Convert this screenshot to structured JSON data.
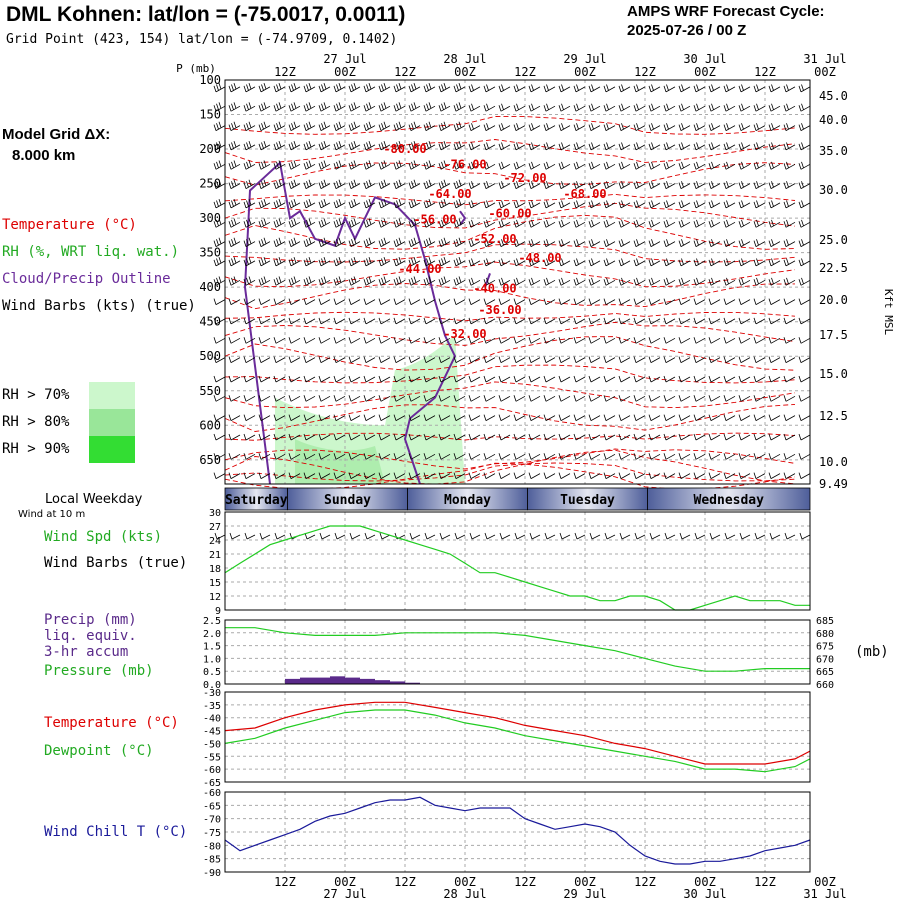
{
  "header": {
    "title": "DML Kohnen:  lat/lon = (-75.0017, 0.0011)",
    "subtitle": "Grid Point (423, 154) lat/lon = (-74.9709, 0.1402)",
    "cycle_line1": "AMPS WRF Forecast Cycle:",
    "cycle_line2": "2025-07-26 / 00  Z"
  },
  "legend": {
    "model_grid_label": "Model Grid ΔX:",
    "model_grid_value": "8.000 km",
    "temperature": "Temperature (°C)",
    "rh": "RH (%, WRT liq. wat.)",
    "cloud": "Cloud/Precip Outline",
    "wind_barbs": "Wind Barbs (kts) (true)",
    "rh70": "RH > 70%",
    "rh80": "RH > 80%",
    "rh90": "RH > 90%",
    "local_weekday": "Local Weekday",
    "wind_at_10m": "Wind at 10 m",
    "wind_spd": "Wind Spd (kts)",
    "wind_barbs_true": "Wind Barbs (true)",
    "precip": "Precip (mm)",
    "liq_equiv": "liq. equiv.",
    "accum": "3-hr accum",
    "pressure": "Pressure (mb)",
    "pressure_unit": "(mb)",
    "temp2": "Temperature (°C)",
    "dewpoint": "Dewpoint (°C)",
    "windchill": "Wind Chill T (°C)"
  },
  "colors": {
    "temperature": "#dd0000",
    "rh70": "#ccf7cc",
    "rh80": "#99e699",
    "rh90": "#33dd33",
    "cloud": "#6a2b9a",
    "green": "#22cc22",
    "precip": "#5a2a8a",
    "windchill": "#1a1a9a",
    "day_band": "#4e5e9a"
  },
  "chart_data": {
    "time_axis": {
      "hour_labels": [
        "12Z",
        "00Z",
        "12Z",
        "00Z",
        "12Z",
        "00Z",
        "12Z",
        "00Z",
        "12Z",
        "00Z"
      ],
      "date_labels": [
        "27 Jul",
        "28 Jul",
        "29 Jul",
        "30 Jul",
        "31 Jul"
      ],
      "hours": [
        12,
        24,
        36,
        48,
        60,
        72,
        84,
        96,
        108,
        120
      ]
    },
    "weekdays": [
      "Saturday",
      "Sunday",
      "Monday",
      "Tuesday",
      "Wednesday"
    ],
    "profile": {
      "p_label": "P (mb)",
      "p_ticks": [
        100,
        150,
        200,
        250,
        300,
        350,
        400,
        450,
        500,
        550,
        600,
        650
      ],
      "height_unit": "Kft MSL",
      "height_ticks": [
        "45.0",
        "40.0",
        "35.0",
        "30.0",
        "25.0",
        "22.5",
        "20.0",
        "17.5",
        "15.0",
        "12.5",
        "10.0",
        "9.49"
      ],
      "temperature_labels": [
        {
          "text": "-80.00",
          "t": 36,
          "p": 200
        },
        {
          "text": "-76.00",
          "t": 48,
          "p": 222
        },
        {
          "text": "-72.00",
          "t": 60,
          "p": 242
        },
        {
          "text": "-68.00",
          "t": 72,
          "p": 265
        },
        {
          "text": "-64.00",
          "t": 45,
          "p": 265
        },
        {
          "text": "-60.00",
          "t": 57,
          "p": 293
        },
        {
          "text": "-56.00",
          "t": 42,
          "p": 302
        },
        {
          "text": "-52.00",
          "t": 54,
          "p": 330
        },
        {
          "text": "-48.00",
          "t": 63,
          "p": 358
        },
        {
          "text": "-44.00",
          "t": 39,
          "p": 374
        },
        {
          "text": "-40.00",
          "t": 54,
          "p": 402
        },
        {
          "text": "-36.00",
          "t": 55,
          "p": 433
        },
        {
          "text": "-32.00",
          "t": 48,
          "p": 468
        }
      ]
    },
    "wind_speed": {
      "type": "line",
      "ylim": [
        9,
        30
      ],
      "yticks": [
        9,
        12,
        15,
        18,
        21,
        24,
        27,
        30
      ],
      "x": [
        0,
        3,
        6,
        9,
        12,
        15,
        18,
        21,
        24,
        27,
        30,
        33,
        36,
        39,
        42,
        45,
        48,
        51,
        54,
        57,
        60,
        63,
        66,
        69,
        72,
        75,
        78,
        81,
        84,
        87,
        90,
        93,
        96,
        99,
        102,
        105,
        108,
        111,
        114,
        117
      ],
      "values": [
        17,
        19,
        21,
        23,
        24,
        25,
        26,
        27,
        27,
        27,
        26,
        25,
        24,
        23,
        22,
        21,
        19,
        17,
        17,
        16,
        15,
        14,
        13,
        12,
        12,
        11,
        11,
        12,
        12,
        11,
        9,
        9,
        10,
        11,
        12,
        11,
        11,
        11,
        10,
        10
      ]
    },
    "precip_pressure": {
      "precip_ylim": [
        0,
        2.5
      ],
      "precip_yticks": [
        "0.0",
        "0.5",
        "1.0",
        "1.5",
        "2.0",
        "2.5"
      ],
      "pressure_ylim": [
        660,
        685
      ],
      "pressure_yticks": [
        "660",
        "665",
        "670",
        "675",
        "680",
        "685"
      ],
      "precip_x": [
        12,
        15,
        18,
        21,
        24,
        27,
        30,
        33,
        36
      ],
      "precip": [
        0.2,
        0.25,
        0.25,
        0.3,
        0.25,
        0.2,
        0.15,
        0.1,
        0.05
      ],
      "pressure_x": [
        0,
        6,
        12,
        18,
        24,
        30,
        36,
        42,
        48,
        54,
        60,
        66,
        72,
        78,
        84,
        90,
        96,
        102,
        108,
        114,
        117
      ],
      "pressure": [
        682,
        682,
        680,
        679,
        679,
        679,
        680,
        680,
        680,
        680,
        679,
        677,
        675,
        673,
        670,
        667,
        665,
        665,
        666,
        666,
        666
      ]
    },
    "temperature": {
      "ylim": [
        -65,
        -30
      ],
      "yticks": [
        -65,
        -60,
        -55,
        -50,
        -45,
        -40,
        -35,
        -30
      ],
      "x": [
        0,
        6,
        12,
        18,
        24,
        30,
        36,
        42,
        48,
        54,
        60,
        66,
        72,
        78,
        84,
        90,
        96,
        102,
        108,
        114,
        117
      ],
      "temperature": [
        -45,
        -44,
        -40,
        -37,
        -35,
        -34,
        -34,
        -36,
        -38,
        -40,
        -43,
        -45,
        -47,
        -50,
        -52,
        -55,
        -58,
        -58,
        -58,
        -56,
        -53
      ],
      "dewpoint": [
        -50,
        -48,
        -44,
        -41,
        -38,
        -37,
        -37,
        -39,
        -42,
        -44,
        -47,
        -49,
        -51,
        -53,
        -55,
        -57,
        -60,
        -60,
        -61,
        -59,
        -56
      ]
    },
    "wind_chill": {
      "ylim": [
        -90,
        -60
      ],
      "yticks": [
        -90,
        -85,
        -80,
        -75,
        -70,
        -65,
        -60
      ],
      "x": [
        0,
        3,
        6,
        9,
        12,
        15,
        18,
        21,
        24,
        27,
        30,
        33,
        36,
        39,
        42,
        45,
        48,
        51,
        54,
        57,
        60,
        63,
        66,
        69,
        72,
        75,
        78,
        81,
        84,
        87,
        90,
        93,
        96,
        99,
        102,
        105,
        108,
        111,
        114,
        117
      ],
      "values": [
        -78,
        -82,
        -80,
        -78,
        -76,
        -74,
        -71,
        -69,
        -68,
        -66,
        -64,
        -63,
        -63,
        -62,
        -65,
        -66,
        -67,
        -66,
        -66,
        -66,
        -70,
        -72,
        -74,
        -73,
        -72,
        -73,
        -75,
        -80,
        -84,
        -86,
        -87,
        -87,
        -86,
        -86,
        -85,
        -84,
        -82,
        -81,
        -80,
        -78
      ]
    }
  }
}
